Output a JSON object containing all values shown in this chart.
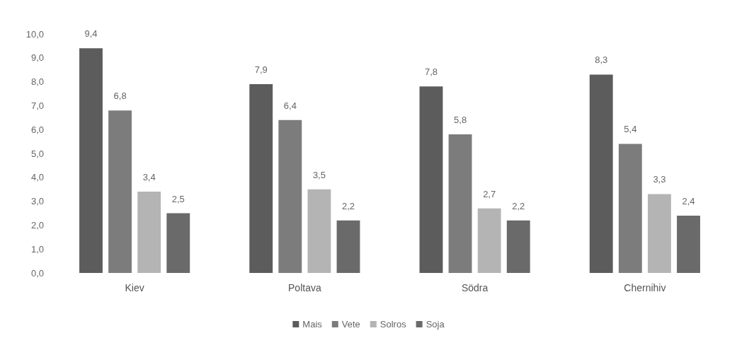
{
  "chart_data": {
    "type": "bar",
    "categories": [
      "Kiev",
      "Poltava",
      "Södra",
      "Chernihiv"
    ],
    "series": [
      {
        "name": "Mais",
        "color": "#5c5c5c",
        "values": [
          9.4,
          7.9,
          7.8,
          8.3
        ],
        "value_labels": [
          "9,4",
          "7,9",
          "7,8",
          "8,3"
        ]
      },
      {
        "name": "Vete",
        "color": "#7c7c7c",
        "values": [
          6.8,
          6.4,
          5.8,
          5.4
        ],
        "value_labels": [
          "6,8",
          "6,4",
          "5,8",
          "5,4"
        ]
      },
      {
        "name": "Solros",
        "color": "#b4b4b4",
        "values": [
          3.4,
          3.5,
          2.7,
          3.3
        ],
        "value_labels": [
          "3,4",
          "3,5",
          "2,7",
          "3,3"
        ]
      },
      {
        "name": "Soja",
        "color": "#6a6a6a",
        "values": [
          2.5,
          2.2,
          2.2,
          2.4
        ],
        "value_labels": [
          "2,5",
          "2,2",
          "2,2",
          "2,4"
        ]
      }
    ],
    "ylim": [
      0,
      10
    ],
    "yticks": [
      {
        "value": 0,
        "label": "0,0"
      },
      {
        "value": 1,
        "label": "1,0"
      },
      {
        "value": 2,
        "label": "2,0"
      },
      {
        "value": 3,
        "label": "3,0"
      },
      {
        "value": 4,
        "label": "4,0"
      },
      {
        "value": 5,
        "label": "5,0"
      },
      {
        "value": 6,
        "label": "6,0"
      },
      {
        "value": 7,
        "label": "7,0"
      },
      {
        "value": 8,
        "label": "8,0"
      },
      {
        "value": 9,
        "label": "9,0"
      },
      {
        "value": 10,
        "label": "10,0"
      }
    ],
    "grid": false,
    "legend": "bottom"
  }
}
